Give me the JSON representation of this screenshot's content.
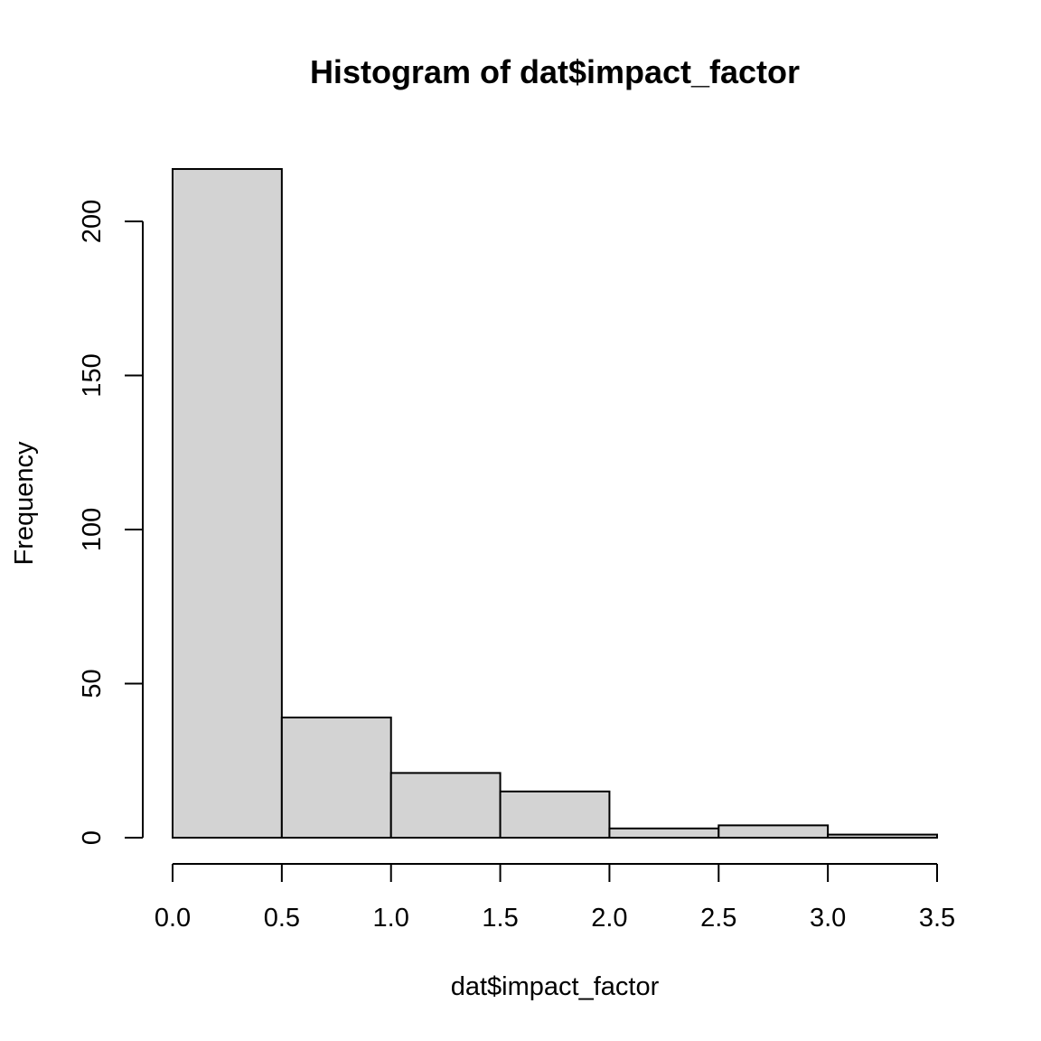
{
  "chart_data": {
    "type": "bar",
    "title": "Histogram of dat$impact_factor",
    "xlabel": "dat$impact_factor",
    "ylabel": "Frequency",
    "bins": [
      {
        "start": 0.0,
        "end": 0.5,
        "count": 217
      },
      {
        "start": 0.5,
        "end": 1.0,
        "count": 39
      },
      {
        "start": 1.0,
        "end": 1.5,
        "count": 21
      },
      {
        "start": 1.5,
        "end": 2.0,
        "count": 15
      },
      {
        "start": 2.0,
        "end": 2.5,
        "count": 3
      },
      {
        "start": 2.5,
        "end": 3.0,
        "count": 4
      },
      {
        "start": 3.0,
        "end": 3.5,
        "count": 1
      }
    ],
    "xlim": [
      0,
      3.5
    ],
    "ylim": [
      0,
      217
    ],
    "x_ticks": [
      "0.0",
      "0.5",
      "1.0",
      "1.5",
      "2.0",
      "2.5",
      "3.0",
      "3.5"
    ],
    "y_ticks": [
      "0",
      "50",
      "100",
      "150",
      "200"
    ],
    "grid": false,
    "colors": {
      "bar_fill": "#d3d3d3",
      "bar_stroke": "#000000"
    }
  }
}
